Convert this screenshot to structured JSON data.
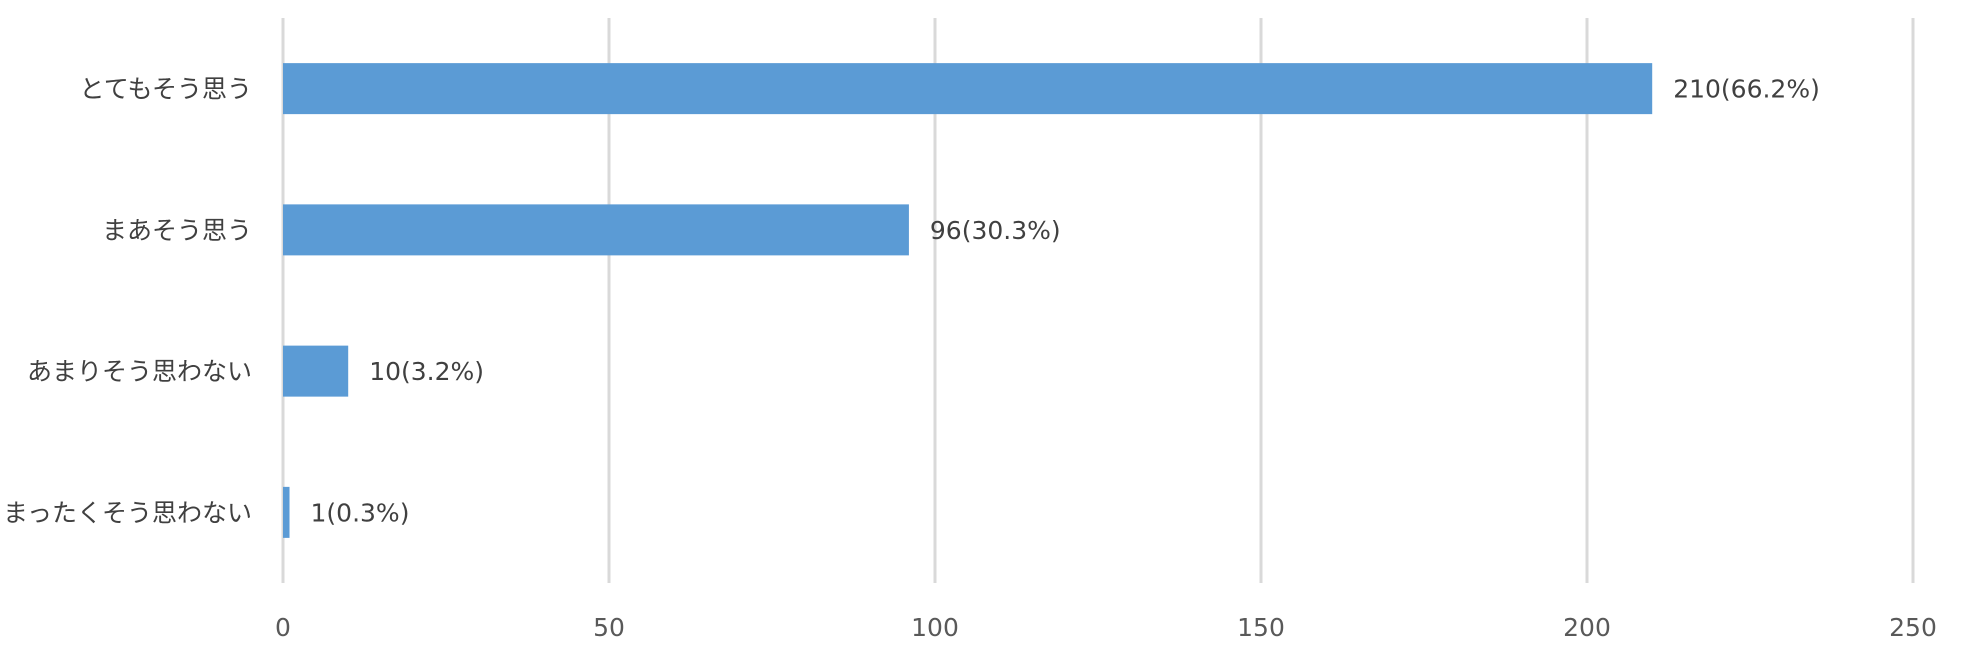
{
  "chart_data": {
    "type": "bar",
    "orientation": "horizontal",
    "title": "",
    "xlabel": "",
    "ylabel": "",
    "categories": [
      "とてもそう思う",
      "まあそう思う",
      "あまりそう思わない",
      "まったくそう思わない"
    ],
    "values": [
      210,
      96,
      10,
      1
    ],
    "data_labels": [
      "210(66.2%)",
      "96(30.3%)",
      "10(3.2%)",
      "1(0.3%)"
    ],
    "xlim": [
      0,
      250
    ],
    "xticks": [
      0,
      50,
      100,
      150,
      200,
      250
    ],
    "grid": true,
    "legend": "none",
    "bar_color": "#5b9bd5"
  }
}
